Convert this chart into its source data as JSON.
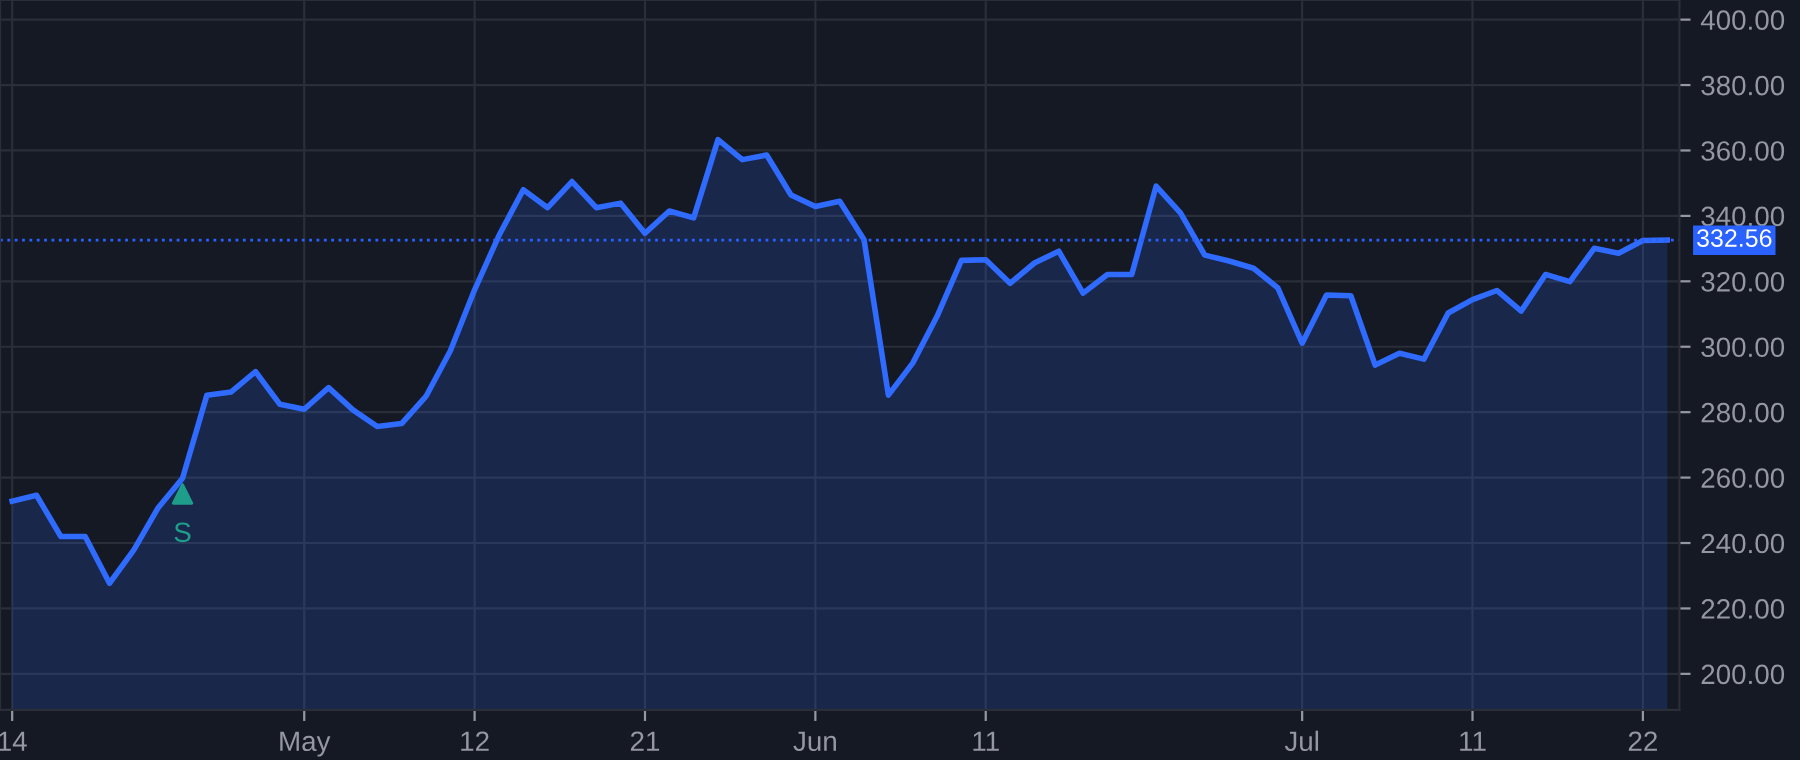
{
  "chart_data": {
    "type": "area",
    "categories": [
      "14",
      null,
      null,
      null,
      null,
      null,
      null,
      null,
      null,
      null,
      null,
      null,
      "May",
      null,
      null,
      null,
      null,
      null,
      null,
      "12",
      null,
      null,
      null,
      null,
      null,
      null,
      "21",
      null,
      null,
      null,
      null,
      null,
      null,
      "Jun",
      null,
      null,
      null,
      null,
      null,
      null,
      "11",
      null,
      null,
      null,
      null,
      null,
      null,
      null,
      null,
      null,
      null,
      null,
      null,
      "Jul",
      null,
      null,
      null,
      null,
      null,
      null,
      "11",
      null,
      null,
      null,
      null,
      null,
      null,
      "22",
      null
    ],
    "series": [
      {
        "color": "#2f6bff",
        "values": [
          252.8,
          254.6,
          242.0,
          242.0,
          227.7,
          237.9,
          250.8,
          259.8,
          285.2,
          286.2,
          292.4,
          282.4,
          280.9,
          287.5,
          280.7,
          275.6,
          276.5,
          284.8,
          298.7,
          317.4,
          334.0,
          348.0,
          342.5,
          350.5,
          342.5,
          343.9,
          334.7,
          341.5,
          339.4,
          363.3,
          357.2,
          358.6,
          346.4,
          342.9,
          344.5,
          332.7,
          285.2,
          295.0,
          309.3,
          326.4,
          326.6,
          319.4,
          325.6,
          329.2,
          316.4,
          322.1,
          322.1,
          349.1,
          340.9,
          328.0,
          326.2,
          324.0,
          318.0,
          301.1,
          315.8,
          315.6,
          294.4,
          298.0,
          296.2,
          310.3,
          314.4,
          317.2,
          310.9,
          322.1,
          319.9,
          330.1,
          328.6,
          332.5,
          332.6
        ]
      },
      {
        "type": "scatter",
        "marker": "triangle",
        "color": "#1e9e8a",
        "values": [
          null,
          null,
          null,
          null,
          null,
          null,
          null,
          255,
          null,
          null,
          null,
          null,
          null,
          null,
          null,
          null,
          null,
          null,
          null,
          null,
          null,
          null,
          null,
          null,
          null,
          null,
          null,
          null,
          null,
          null,
          null,
          null,
          null,
          null,
          null,
          null,
          null,
          null,
          null,
          null,
          null,
          null,
          null,
          null,
          null,
          null,
          null,
          null,
          null,
          null,
          null,
          null,
          null,
          null,
          null,
          null,
          null,
          null,
          null,
          null,
          null,
          null,
          null,
          null,
          null,
          null,
          null,
          null,
          null
        ]
      }
    ],
    "annotations": [
      "S"
    ],
    "ylim": [
      189,
      406
    ],
    "yticks": [
      {
        "value": 200,
        "label": "200.00"
      },
      {
        "value": 220,
        "label": "220.00"
      },
      {
        "value": 240,
        "label": "240.00"
      },
      {
        "value": 260,
        "label": "260.00"
      },
      {
        "value": 280,
        "label": "280.00"
      },
      {
        "value": 300,
        "label": "300.00"
      },
      {
        "value": 320,
        "label": "320.00"
      },
      {
        "value": 340,
        "label": "340.00"
      },
      {
        "value": 360,
        "label": "360.00"
      },
      {
        "value": 380,
        "label": "380.00"
      },
      {
        "value": 400,
        "label": "400.00"
      }
    ],
    "ref_lines": [
      {
        "axis": "y",
        "value": 332.56,
        "label": "332.56",
        "color": "#2962ff",
        "line_style": "dotted"
      }
    ],
    "grid": true
  }
}
